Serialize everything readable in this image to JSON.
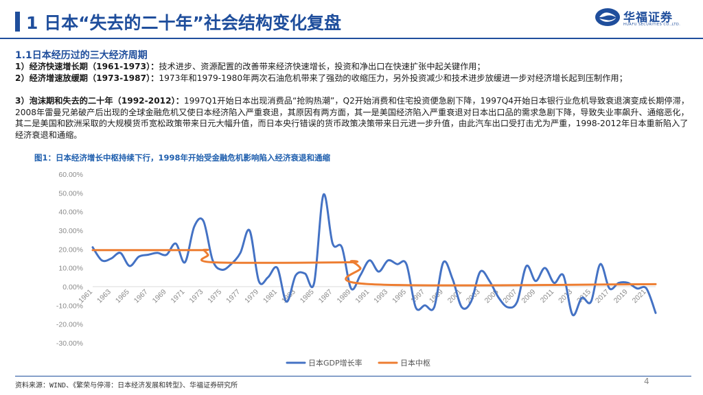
{
  "header": {
    "title": "1 日本“失去的二十年”社会结构变化复盘",
    "logo_text": "华福证券",
    "logo_sub": "HUAFU SECURITIES CO.,LTD."
  },
  "section": {
    "title": "1.1日本经历过的三大经济周期",
    "paragraphs": [
      {
        "label": "1）经济快速增长期（1961-1973）：",
        "text": "技术进步、资源配置的改善带来经济快速增长，投资和净出口在快速扩张中起关键作用；"
      },
      {
        "label": "2）经济增速放缓期（1973-1987）：",
        "text": "1973年和1979-1980年两次石油危机带来了强劲的收缩压力，另外投资减少和技术进步放缓进一步对经济增长起到压制作用；"
      },
      {
        "label": "3）泡沫期和失去的二十年（1992-2012）：",
        "text": "1997Q1开始日本出现消费品“抢购热潮”，Q2开始消费和住宅投资便急剧下降，1997Q4开始日本银行业危机导致衰退演变成长期停滞，2008年雷曼兄弟破产后出现的全球金融危机又使日本经济陷入严重衰退，其原因有两方面，其一是美国经济陷入严重衰退对日本出口品的需求急剧下降，导致失业率飙升、通缩恶化，其二是美国和欧洲采取的大规模货币宽松政策带来日元大幅升值，而日本央行错误的货币政策决策带来日元进一步升值，由此汽车出口受打击尤为严重，1998-2012年日本重新陷入了经济衰退和通缩。"
      }
    ]
  },
  "figure": {
    "title": "图1：日本经济增长中枢持续下行，1998年开始受金融危机影响陷入经济衰退和通缩"
  },
  "chart_data": {
    "type": "line",
    "ylim": [
      -30,
      60
    ],
    "ytick_step": 10,
    "ytick_labels": [
      "60.00%",
      "50.00%",
      "40.00%",
      "30.00%",
      "20.00%",
      "10.00%",
      "0.00%",
      "-10.00%",
      "-20.00%",
      "-30.00%"
    ],
    "x_start": 1961,
    "x_end": 2022,
    "xtick_labels": [
      "1961",
      "1963",
      "1965",
      "1967",
      "1969",
      "1971",
      "1973",
      "1975",
      "1977",
      "1979",
      "1981",
      "1983",
      "1985",
      "1987",
      "1989",
      "1991",
      "1993",
      "1995",
      "1997",
      "1999",
      "2001",
      "2003",
      "2005",
      "2007",
      "2009",
      "2011",
      "2013",
      "2015",
      "2017",
      "2019",
      "2021"
    ],
    "legend_position": "bottom",
    "series": [
      {
        "name": "日本GDP增长率",
        "color": "#4472c4",
        "x": [
          1961,
          1962,
          1963,
          1964,
          1965,
          1966,
          1967,
          1968,
          1969,
          1970,
          1971,
          1972,
          1973,
          1974,
          1975,
          1976,
          1977,
          1978,
          1979,
          1980,
          1981,
          1982,
          1983,
          1984,
          1985,
          1986,
          1987,
          1988,
          1989,
          1990,
          1991,
          1992,
          1993,
          1994,
          1995,
          1996,
          1997,
          1998,
          1999,
          2000,
          2001,
          2002,
          2003,
          2004,
          2005,
          2006,
          2007,
          2008,
          2009,
          2010,
          2011,
          2012,
          2013,
          2014,
          2015,
          2016,
          2017,
          2018,
          2019,
          2020,
          2021,
          2022
        ],
        "values": [
          21,
          14,
          15,
          18,
          11,
          16,
          17,
          18,
          17,
          23,
          13,
          32,
          35,
          14,
          9,
          12,
          18,
          30,
          3,
          5,
          10,
          -8,
          6,
          7,
          2,
          49,
          23,
          21,
          -1,
          6,
          14,
          8,
          14,
          12,
          12,
          -11,
          -10,
          -11,
          13,
          4,
          -11,
          -8,
          8,
          3,
          -6,
          -11,
          -8,
          11,
          3,
          10,
          2,
          6,
          -15,
          -6,
          -8,
          12,
          -1,
          2,
          2,
          -1,
          -1,
          -14
        ]
      },
      {
        "name": "日本中枢",
        "color": "#ed7d31",
        "x": [
          1961,
          1972.5,
          1973,
          1973.5,
          1974,
          1988.5,
          1989,
          1990,
          1991,
          2022
        ],
        "values": [
          19.5,
          19.5,
          19.5,
          17,
          13,
          13,
          13.5,
          10,
          1.3,
          1.3
        ]
      }
    ]
  },
  "footer": {
    "source": "资料来源：WIND、《繁荣与停滞：日本经济发展和转型》、华福证券研究所",
    "page": "4"
  }
}
